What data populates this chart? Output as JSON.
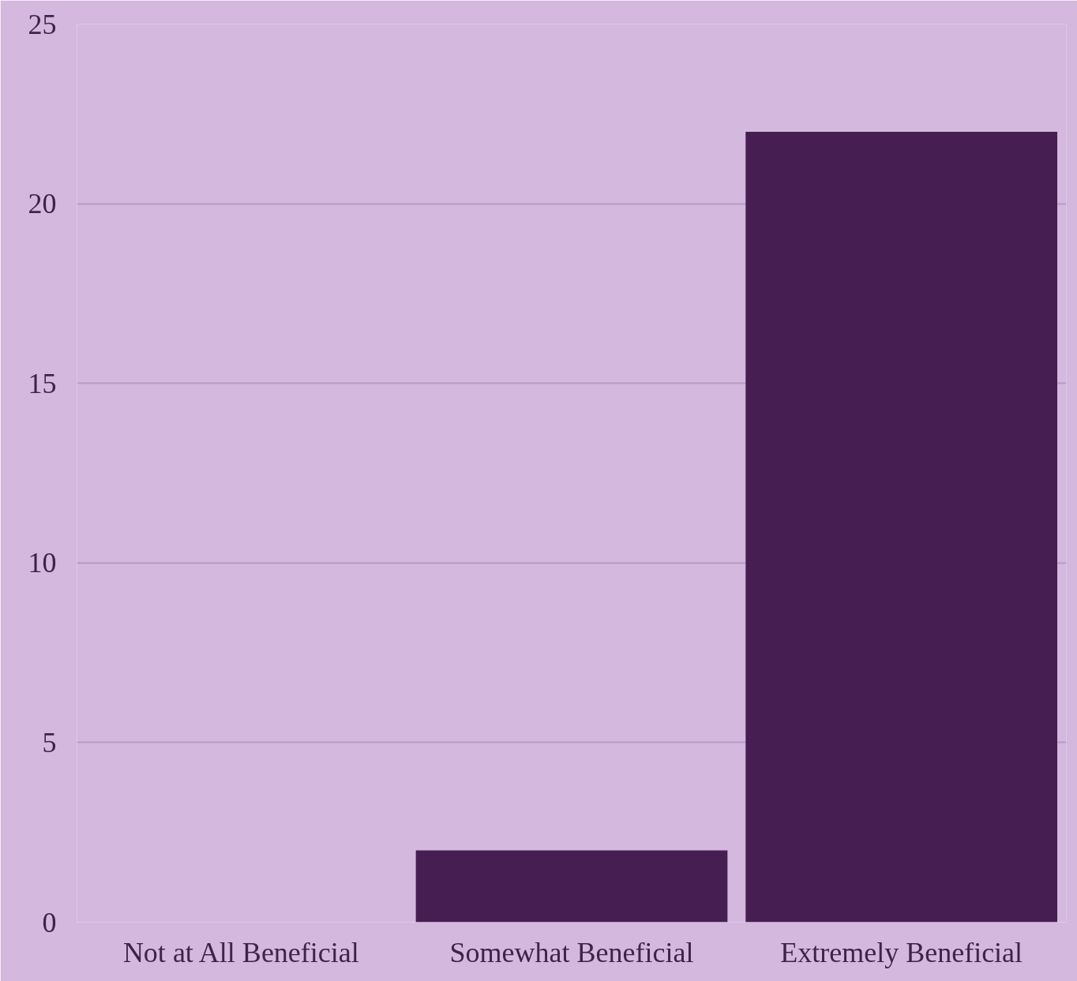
{
  "chart_data": {
    "type": "bar",
    "categories": [
      "Not at All Beneficial",
      "Somewhat Beneficial",
      "Extremely Beneficial"
    ],
    "values": [
      0,
      2,
      22
    ],
    "color": "#461e52",
    "ylim": [
      0,
      25
    ],
    "yticks": [
      0,
      5,
      10,
      15,
      20,
      25
    ],
    "grid": "y"
  }
}
